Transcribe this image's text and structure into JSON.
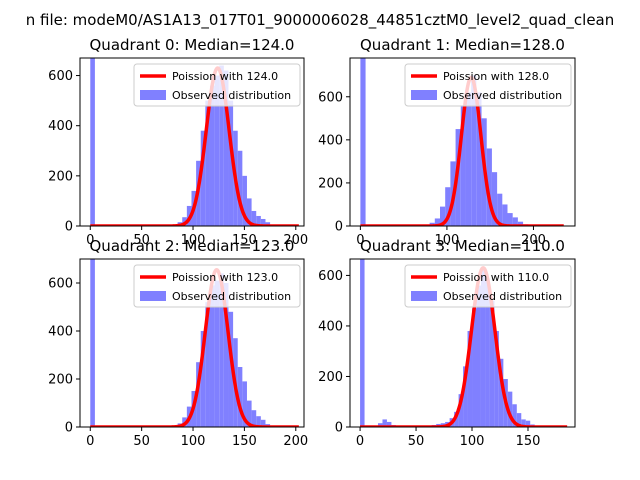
{
  "figure": {
    "suptitle": "n file: modeM0/AS1A13_017T01_9000006028_44851cztM0_level2_quad_clean"
  },
  "chart_data": [
    {
      "type": "histogram",
      "title": "Quadrant 0: Median=124.0",
      "xlim": [
        -10,
        208
      ],
      "ylim": [
        0,
        670
      ],
      "xticks": [
        0,
        50,
        100,
        150,
        200
      ],
      "yticks": [
        0,
        200,
        400,
        600
      ],
      "legend": {
        "placement": "top-right",
        "entries": [
          "Poission with 124.0",
          "Observed distribution"
        ]
      },
      "bars": {
        "name": "Observed distribution",
        "color": "#8080ff",
        "bin_width": 4.5,
        "x": [
          0,
          85,
          89.5,
          94,
          98.5,
          103,
          107.5,
          112,
          116.5,
          121,
          125.5,
          130,
          134.5,
          139,
          143.5,
          148,
          152.5,
          157,
          161.5,
          166,
          170.5
        ],
        "y": [
          670,
          15,
          35,
          80,
          140,
          260,
          380,
          500,
          560,
          600,
          640,
          620,
          500,
          380,
          300,
          200,
          110,
          60,
          40,
          28,
          15
        ]
      },
      "curve": {
        "name": "Poission with 124.0",
        "color": "#ff0000",
        "lambda": 124.0,
        "peak": 630,
        "x_start": 0,
        "x_end": 203
      }
    },
    {
      "type": "histogram",
      "title": "Quadrant 1: Median=128.0",
      "xlim": [
        -12,
        248
      ],
      "ylim": [
        0,
        780
      ],
      "xticks": [
        0,
        100,
        200
      ],
      "yticks": [
        0,
        200,
        400,
        600
      ],
      "legend": {
        "placement": "top-right",
        "entries": [
          "Poission with 128.0",
          "Observed distribution"
        ]
      },
      "bars": {
        "name": "Observed distribution",
        "color": "#8080ff",
        "bin_width": 6,
        "x": [
          0,
          80,
          86,
          92,
          98,
          104,
          110,
          116,
          122,
          128,
          134,
          140,
          146,
          152,
          158,
          164,
          170,
          176,
          182,
          188
        ],
        "y": [
          780,
          15,
          35,
          90,
          180,
          300,
          450,
          560,
          620,
          700,
          620,
          500,
          360,
          250,
          150,
          100,
          60,
          40,
          20,
          8
        ]
      },
      "curve": {
        "name": "Poission with 128.0",
        "color": "#ff0000",
        "lambda": 128.0,
        "peak": 690,
        "x_start": 0,
        "x_end": 235
      }
    },
    {
      "type": "histogram",
      "title": "Quadrant 2: Median=123.0",
      "xlim": [
        -10,
        208
      ],
      "ylim": [
        0,
        700
      ],
      "xticks": [
        0,
        50,
        100,
        150,
        200
      ],
      "yticks": [
        0,
        200,
        400,
        600
      ],
      "legend": {
        "placement": "top-right",
        "entries": [
          "Poission with 123.0",
          "Observed distribution"
        ]
      },
      "bars": {
        "name": "Observed distribution",
        "color": "#8080ff",
        "bin_width": 4.5,
        "x": [
          0,
          85,
          89.5,
          94,
          98.5,
          103,
          107.5,
          112,
          116.5,
          121,
          125.5,
          130,
          134.5,
          139,
          143.5,
          148,
          152.5,
          157,
          161.5,
          166,
          170.5
        ],
        "y": [
          700,
          15,
          40,
          85,
          150,
          270,
          400,
          520,
          590,
          610,
          640,
          600,
          480,
          370,
          250,
          190,
          110,
          70,
          45,
          30,
          12
        ]
      },
      "curve": {
        "name": "Poission with 123.0",
        "color": "#ff0000",
        "lambda": 123.0,
        "peak": 655,
        "x_start": 0,
        "x_end": 203
      }
    },
    {
      "type": "histogram",
      "title": "Quadrant 3: Median=110.0",
      "xlim": [
        -9,
        192
      ],
      "ylim": [
        0,
        665
      ],
      "xticks": [
        0,
        50,
        100,
        150
      ],
      "yticks": [
        0,
        200,
        400,
        600
      ],
      "legend": {
        "placement": "top-right",
        "entries": [
          "Poission with 110.0",
          "Observed distribution"
        ]
      },
      "bars": {
        "name": "Observed distribution",
        "color": "#8080ff",
        "bin_width": 4,
        "x": [
          0,
          16,
          20,
          24,
          28,
          60,
          64,
          68,
          72,
          76,
          80,
          84,
          88,
          92,
          96,
          100,
          104,
          108,
          112,
          116,
          120,
          124,
          128,
          132,
          136,
          140,
          144,
          148,
          152,
          156
        ],
        "y": [
          665,
          15,
          30,
          20,
          8,
          5,
          8,
          12,
          15,
          20,
          35,
          60,
          130,
          240,
          380,
          470,
          560,
          620,
          580,
          500,
          380,
          270,
          190,
          140,
          90,
          55,
          30,
          25,
          10,
          5
        ]
      },
      "curve": {
        "name": "Poission with 110.0",
        "color": "#ff0000",
        "lambda": 110.0,
        "peak": 630,
        "x_start": 0,
        "x_end": 185
      }
    }
  ]
}
